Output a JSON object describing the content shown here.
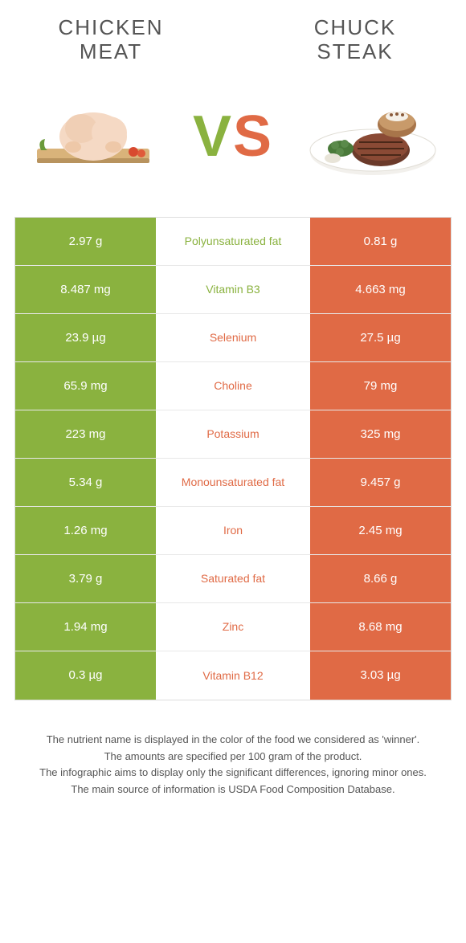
{
  "header": {
    "left_title": "CHICKEN\nMEAT",
    "right_title": "CHUCK\nSTEAK"
  },
  "vs": "VS",
  "colors": {
    "green": "#8ab23f",
    "orange": "#e06a45",
    "text_gray": "#555555",
    "border": "#dddddd",
    "row_border": "#e8e8e8"
  },
  "rows": [
    {
      "left": "2.97 g",
      "label": "Polyunsaturated fat",
      "right": "0.81 g",
      "winner": "left"
    },
    {
      "left": "8.487 mg",
      "label": "Vitamin B3",
      "right": "4.663 mg",
      "winner": "left"
    },
    {
      "left": "23.9 µg",
      "label": "Selenium",
      "right": "27.5 µg",
      "winner": "right"
    },
    {
      "left": "65.9 mg",
      "label": "Choline",
      "right": "79 mg",
      "winner": "right"
    },
    {
      "left": "223 mg",
      "label": "Potassium",
      "right": "325 mg",
      "winner": "right"
    },
    {
      "left": "5.34 g",
      "label": "Monounsaturated fat",
      "right": "9.457 g",
      "winner": "right"
    },
    {
      "left": "1.26 mg",
      "label": "Iron",
      "right": "2.45 mg",
      "winner": "right"
    },
    {
      "left": "3.79 g",
      "label": "Saturated fat",
      "right": "8.66 g",
      "winner": "right"
    },
    {
      "left": "1.94 mg",
      "label": "Zinc",
      "right": "8.68 mg",
      "winner": "right"
    },
    {
      "left": "0.3 µg",
      "label": "Vitamin B12",
      "right": "3.03 µg",
      "winner": "right"
    }
  ],
  "footer": {
    "line1": "The nutrient name is displayed in the color of the food we considered as 'winner'.",
    "line2": "The amounts are specified per 100 gram of the product.",
    "line3": "The infographic aims to display only the significant differences, ignoring minor ones.",
    "line4": "The main source of information is USDA Food Composition Database."
  }
}
